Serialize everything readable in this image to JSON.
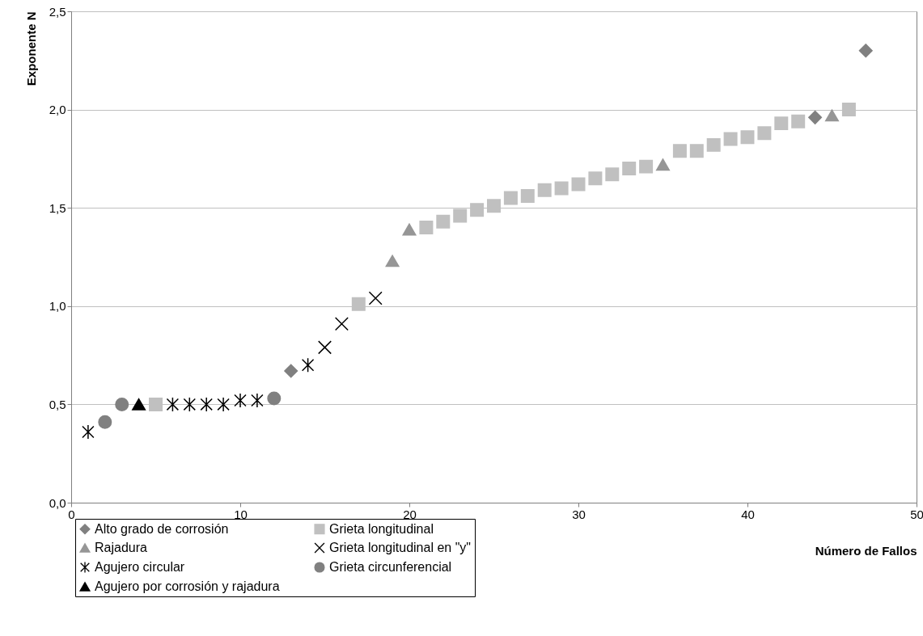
{
  "chart_data": {
    "type": "scatter",
    "xlabel": "Número de Fallos",
    "ylabel": "Exponente N",
    "xlim": [
      0,
      50
    ],
    "xticks": [
      0,
      10,
      20,
      30,
      40,
      50
    ],
    "ylim": [
      0,
      2.5
    ],
    "yticks": [
      {
        "value": 0,
        "label": "0,0"
      },
      {
        "value": 0.5,
        "label": "0,5"
      },
      {
        "value": 1,
        "label": "1,0"
      },
      {
        "value": 1.5,
        "label": "1,5"
      },
      {
        "value": 2,
        "label": "2,0"
      },
      {
        "value": 2.5,
        "label": "2,5"
      }
    ],
    "grid": "y",
    "legend": "bottom",
    "series": [
      {
        "name": "Alto grado de corrosión",
        "color": "#808080",
        "marker": "diamond",
        "x": [
          13,
          44,
          47
        ],
        "values": [
          0.67,
          1.96,
          2.3
        ]
      },
      {
        "name": "Grieta longitudinal",
        "color": "#c0c0c0",
        "marker": "square",
        "x": [
          5,
          17,
          21,
          22,
          23,
          24,
          25,
          26,
          27,
          28,
          29,
          30,
          31,
          32,
          33,
          34,
          36,
          37,
          38,
          39,
          40,
          41,
          42,
          43,
          46
        ],
        "values": [
          0.5,
          1.01,
          1.4,
          1.43,
          1.46,
          1.49,
          1.51,
          1.55,
          1.56,
          1.59,
          1.6,
          1.62,
          1.65,
          1.67,
          1.7,
          1.71,
          1.79,
          1.79,
          1.82,
          1.85,
          1.86,
          1.88,
          1.93,
          1.94,
          2.0
        ]
      },
      {
        "name": "Rajadura",
        "color": "#969696",
        "marker": "triangle",
        "x": [
          19,
          20,
          35,
          45
        ],
        "values": [
          1.23,
          1.39,
          1.72,
          1.97
        ]
      },
      {
        "name": "Grieta longitudinal en \"y\"",
        "color": "#000000",
        "x": [
          15,
          16,
          18
        ],
        "values": [
          0.79,
          0.91,
          1.04
        ]
      },
      {
        "name": "Agujero circular",
        "color": "#000000",
        "marker": "cross",
        "x": [
          1,
          6,
          7,
          8,
          9,
          10,
          11,
          14
        ],
        "values": [
          0.36,
          0.5,
          0.5,
          0.5,
          0.5,
          0.52,
          0.52,
          0.7
        ]
      },
      {
        "name": "Grieta circunferencial",
        "color": "#808080",
        "marker": "circle",
        "x": [
          2,
          3,
          12
        ],
        "values": [
          0.41,
          0.5,
          0.53
        ]
      },
      {
        "name": "Agujero por corrosión y rajadura",
        "color": "#000000",
        "marker": "triangle",
        "x": [
          4
        ],
        "values": [
          0.5
        ]
      }
    ]
  }
}
